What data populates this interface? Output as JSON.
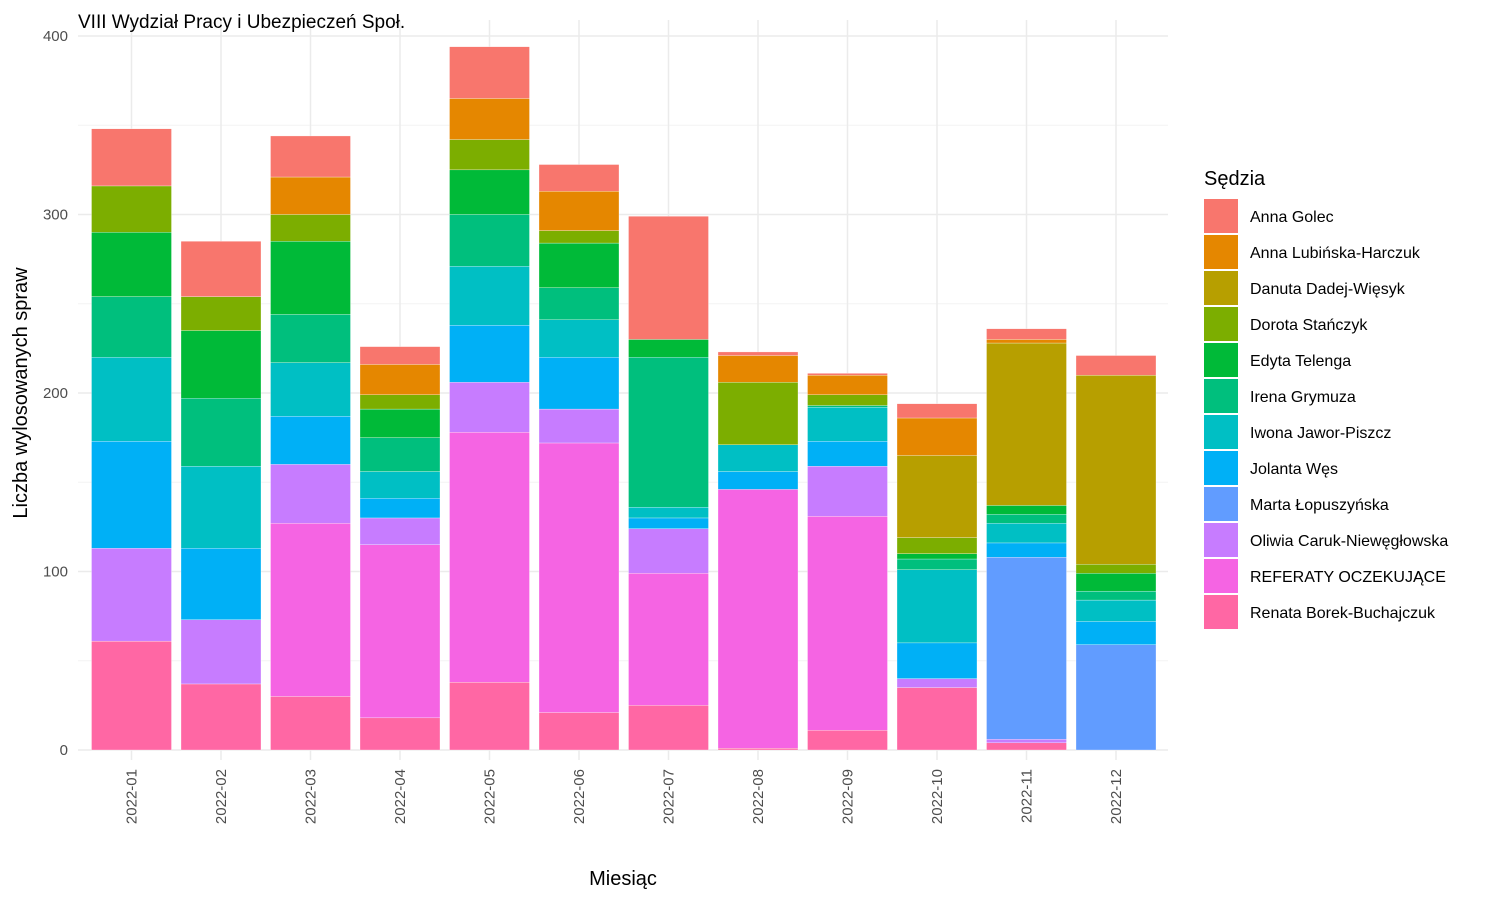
{
  "chart_data": {
    "type": "bar",
    "stacked": true,
    "title": "VIII Wydział Pracy i Ubezpieczeń Społ.",
    "xlabel": "Miesiąc",
    "ylabel": "Liczba wylosowanych spraw",
    "ylim": [
      0,
      400
    ],
    "yticks": [
      0,
      100,
      200,
      300,
      400
    ],
    "grid": true,
    "legend_title": "Sędzia",
    "legend_position": "right",
    "categories": [
      "2022-01",
      "2022-02",
      "2022-03",
      "2022-04",
      "2022-05",
      "2022-06",
      "2022-07",
      "2022-08",
      "2022-09",
      "2022-10",
      "2022-11",
      "2022-12"
    ],
    "series": [
      {
        "name": "Renata Borek-Buchajczuk",
        "color": "#FF67A4",
        "values": [
          61,
          37,
          30,
          18,
          38,
          21,
          25,
          1,
          11,
          35,
          4,
          0
        ]
      },
      {
        "name": "REFERATY OCZEKUJĄCE",
        "color": "#F564E3",
        "values": [
          0,
          0,
          97,
          97,
          140,
          151,
          74,
          145,
          120,
          0,
          0,
          0
        ]
      },
      {
        "name": "Oliwia Caruk-Niewęgłowska",
        "color": "#C77CFF",
        "values": [
          52,
          36,
          33,
          15,
          28,
          19,
          25,
          0,
          28,
          5,
          2,
          0
        ]
      },
      {
        "name": "Marta Łopuszyńska",
        "color": "#619CFF",
        "values": [
          0,
          0,
          0,
          0,
          0,
          0,
          0,
          0,
          0,
          0,
          102,
          59
        ]
      },
      {
        "name": "Jolanta Węs",
        "color": "#00B0F6",
        "values": [
          60,
          40,
          27,
          11,
          32,
          29,
          6,
          10,
          14,
          20,
          8,
          13
        ]
      },
      {
        "name": "Iwona Jawor-Piszcz",
        "color": "#00BFC4",
        "values": [
          47,
          46,
          30,
          15,
          33,
          21,
          6,
          15,
          19,
          41,
          11,
          12
        ]
      },
      {
        "name": "Irena Grymuza",
        "color": "#00BF7D",
        "values": [
          34,
          38,
          27,
          19,
          29,
          18,
          84,
          0,
          1,
          6,
          5,
          5
        ]
      },
      {
        "name": "Edyta Telenga",
        "color": "#00BA38",
        "values": [
          36,
          38,
          41,
          16,
          25,
          25,
          10,
          0,
          0,
          3,
          5,
          10
        ]
      },
      {
        "name": "Dorota Stańczyk",
        "color": "#7CAE00",
        "values": [
          26,
          19,
          15,
          8,
          17,
          7,
          0,
          35,
          6,
          9,
          0,
          5
        ]
      },
      {
        "name": "Danuta Dadej-Więsyk",
        "color": "#B79F00",
        "values": [
          0,
          0,
          0,
          0,
          0,
          0,
          0,
          0,
          0,
          46,
          91,
          106
        ]
      },
      {
        "name": "Anna Lubińska-Harczuk",
        "color": "#E58700",
        "values": [
          0,
          0,
          21,
          17,
          23,
          22,
          0,
          15,
          11,
          21,
          2,
          0
        ]
      },
      {
        "name": "Anna Golec",
        "color": "#F8766D",
        "values": [
          32,
          31,
          23,
          10,
          29,
          15,
          69,
          2,
          1,
          8,
          6,
          11
        ]
      }
    ],
    "legend_order": [
      "Anna Golec",
      "Anna Lubińska-Harczuk",
      "Danuta Dadej-Więsyk",
      "Dorota Stańczyk",
      "Edyta Telenga",
      "Irena Grymuza",
      "Iwona Jawor-Piszcz",
      "Jolanta Węs",
      "Marta Łopuszyńska",
      "Oliwia Caruk-Niewęgłowska",
      "REFERATY OCZEKUJĄCE",
      "Renata Borek-Buchajczuk"
    ]
  }
}
